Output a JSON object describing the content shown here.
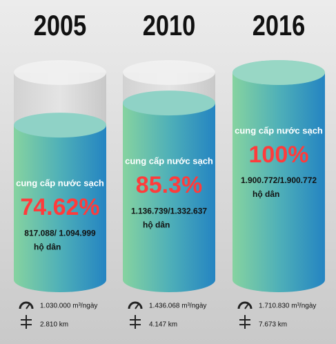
{
  "chart_data": {
    "type": "cylinder",
    "categories": [
      "2005",
      "2010",
      "2016"
    ],
    "values": [
      74.62,
      85.3,
      100
    ],
    "value_labels": [
      "74.62%",
      "85.3%",
      "100%"
    ],
    "ylim": [
      0,
      100
    ],
    "captions": [
      "cung cấp nước sạch",
      "cung cấp nước sạch",
      "cung cấp nước sạch"
    ],
    "households": [
      "817.088/ 1.094.999",
      "1.136.739/1.332.637",
      "1.900.772/1.900.772"
    ],
    "household_unit": [
      "hộ dân",
      "hộ dân",
      "hộ dân"
    ],
    "capacity": [
      "1.030.000 m³/ngày",
      "1.436.068 m³/ngày",
      "1.710.830 m³/ngày"
    ],
    "pipe_length": [
      "2.810 km",
      "4.147 km",
      "7.673 km"
    ]
  }
}
